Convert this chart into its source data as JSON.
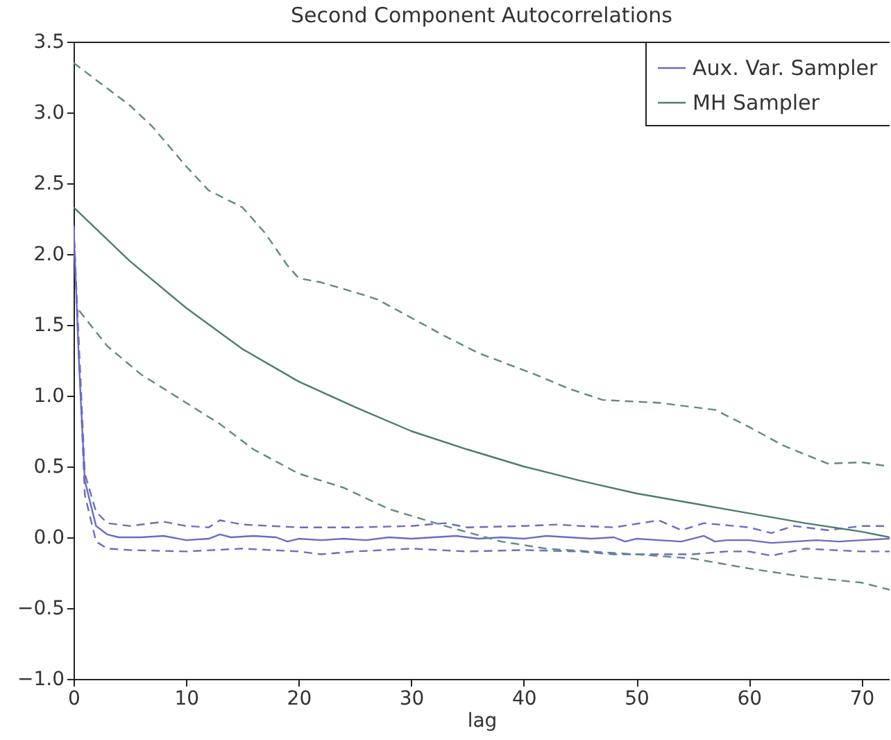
{
  "chart_data": {
    "type": "line",
    "title": "Second Component Autocorrelations",
    "xlabel": "lag",
    "xlim": [
      0,
      72.5
    ],
    "xticks": [
      0,
      10,
      20,
      30,
      40,
      50,
      60,
      70
    ],
    "ylim": [
      -1.0,
      3.5
    ],
    "yticks": [
      {
        "value": -1.0,
        "label": "−1.0"
      },
      {
        "value": -0.5,
        "label": "−0.5"
      },
      {
        "value": 0.0,
        "label": "0.0"
      },
      {
        "value": 0.5,
        "label": "0.5"
      },
      {
        "value": 1.0,
        "label": "1.0"
      },
      {
        "value": 1.5,
        "label": "1.5"
      },
      {
        "value": 2.0,
        "label": "2.0"
      },
      {
        "value": 2.5,
        "label": "2.5"
      },
      {
        "value": 3.0,
        "label": "3.0"
      },
      {
        "value": 3.5,
        "label": "3.5"
      }
    ],
    "grid": false,
    "legend": "top right",
    "marker": "none",
    "series": [
      {
        "name": "Aux. Var. Sampler",
        "color": "#6b6bc6",
        "line_style": "solid",
        "x": [
          0,
          0.5,
          1,
          2,
          3,
          4,
          6,
          8,
          10,
          12,
          13,
          14,
          16,
          18,
          19,
          20,
          22,
          24,
          26,
          28,
          30,
          32,
          34,
          36,
          38,
          40,
          42,
          44,
          46,
          48,
          49,
          50,
          52,
          54,
          56,
          57,
          58,
          60,
          62,
          64,
          66,
          68,
          70,
          72.5
        ],
        "values": [
          2.2,
          1.2,
          0.4,
          0.08,
          0.02,
          0.0,
          0.0,
          0.01,
          -0.02,
          -0.01,
          0.02,
          0.0,
          0.01,
          0.0,
          -0.03,
          -0.01,
          -0.02,
          -0.01,
          -0.02,
          0.0,
          -0.01,
          0.0,
          0.01,
          -0.01,
          0.0,
          -0.01,
          0.01,
          0.0,
          -0.01,
          0.0,
          -0.03,
          -0.01,
          -0.02,
          -0.03,
          0.01,
          -0.03,
          -0.02,
          -0.02,
          -0.04,
          -0.03,
          -0.02,
          -0.03,
          -0.02,
          -0.01
        ]
      },
      {
        "color": "#6b6bc6",
        "line_style": "dashed",
        "x": [
          0,
          1,
          2,
          3,
          5,
          8,
          10,
          12,
          13,
          15,
          20,
          25,
          30,
          33,
          35,
          40,
          43,
          45,
          48,
          52,
          54,
          56,
          60,
          62,
          64,
          67,
          70,
          72.5
        ],
        "values": [
          2.2,
          0.45,
          0.18,
          0.1,
          0.08,
          0.11,
          0.08,
          0.07,
          0.12,
          0.09,
          0.07,
          0.07,
          0.08,
          0.1,
          0.07,
          0.08,
          0.09,
          0.08,
          0.07,
          0.12,
          0.05,
          0.1,
          0.07,
          0.03,
          0.08,
          0.05,
          0.08,
          0.08
        ]
      },
      {
        "color": "#6b6bc6",
        "line_style": "dashed",
        "x": [
          0,
          1,
          2,
          3,
          5,
          10,
          15,
          20,
          22,
          25,
          30,
          35,
          40,
          45,
          48,
          50,
          55,
          58,
          60,
          62,
          65,
          70,
          72.5
        ],
        "values": [
          2.2,
          0.3,
          -0.03,
          -0.08,
          -0.09,
          -0.1,
          -0.08,
          -0.1,
          -0.12,
          -0.1,
          -0.08,
          -0.1,
          -0.09,
          -0.1,
          -0.12,
          -0.12,
          -0.12,
          -0.1,
          -0.1,
          -0.13,
          -0.08,
          -0.1,
          -0.1
        ]
      },
      {
        "name": "MH Sampler",
        "color": "#4d7d6d",
        "line_style": "solid",
        "x": [
          0,
          5,
          10,
          15,
          20,
          25,
          30,
          35,
          40,
          45,
          50,
          55,
          60,
          65,
          70,
          72.5
        ],
        "values": [
          2.33,
          1.95,
          1.62,
          1.33,
          1.1,
          0.92,
          0.75,
          0.62,
          0.5,
          0.4,
          0.31,
          0.24,
          0.17,
          0.1,
          0.04,
          0.0
        ]
      },
      {
        "color": "#5f8a80",
        "line_style": "dashed",
        "x": [
          0,
          5,
          7,
          10,
          12,
          15,
          17,
          19,
          20,
          22,
          25,
          27,
          30,
          33,
          36,
          41,
          44,
          47,
          52,
          57,
          60,
          63,
          67,
          70,
          72.5
        ],
        "values": [
          3.35,
          3.05,
          2.9,
          2.62,
          2.45,
          2.33,
          2.15,
          1.92,
          1.83,
          1.8,
          1.73,
          1.68,
          1.55,
          1.42,
          1.3,
          1.15,
          1.05,
          0.97,
          0.95,
          0.9,
          0.78,
          0.65,
          0.52,
          0.53,
          0.5
        ]
      },
      {
        "color": "#5f8a80",
        "line_style": "dashed",
        "x": [
          0.5,
          3,
          6,
          10,
          13,
          16,
          20,
          24,
          28,
          33,
          38,
          42,
          46,
          50,
          55,
          60,
          65,
          70,
          72.5
        ],
        "values": [
          1.6,
          1.35,
          1.15,
          0.95,
          0.8,
          0.62,
          0.45,
          0.35,
          0.2,
          0.08,
          -0.03,
          -0.08,
          -0.1,
          -0.12,
          -0.15,
          -0.22,
          -0.28,
          -0.32,
          -0.37
        ]
      }
    ]
  }
}
